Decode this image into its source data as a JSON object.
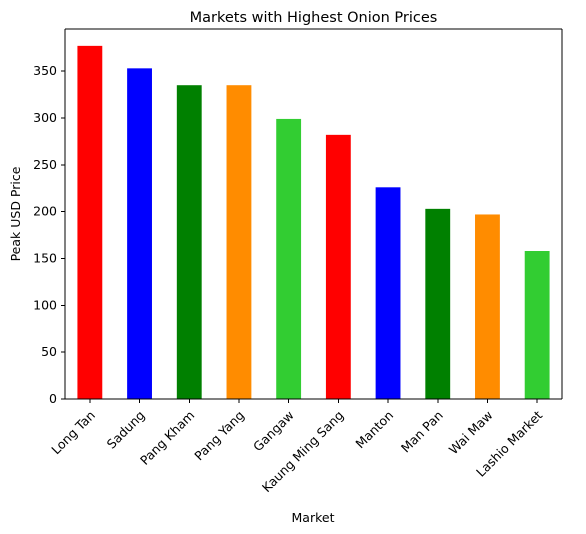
{
  "chart_data": {
    "type": "bar",
    "title": "Markets with Highest Onion Prices",
    "xlabel": "Market",
    "ylabel": "Peak USD Price",
    "categories": [
      "Long Tan",
      "Sadung",
      "Pang Kham",
      "Pang Yang",
      "Gangaw",
      "Kaung Ming Sang",
      "Manton",
      "Man Pan",
      "Wai Maw",
      "Lashio Market"
    ],
    "values": [
      377,
      353,
      335,
      335,
      299,
      282,
      226,
      203,
      197,
      158
    ],
    "colors": [
      "#ff0000",
      "#0000ff",
      "#008000",
      "#ff8c00",
      "#32cd32",
      "#ff0000",
      "#0000ff",
      "#008000",
      "#ff8c00",
      "#32cd32"
    ],
    "yticks": [
      "0",
      "50",
      "100",
      "150",
      "200",
      "250",
      "300",
      "350"
    ],
    "ylim": [
      0,
      395
    ],
    "grid": false,
    "legend": "none"
  }
}
